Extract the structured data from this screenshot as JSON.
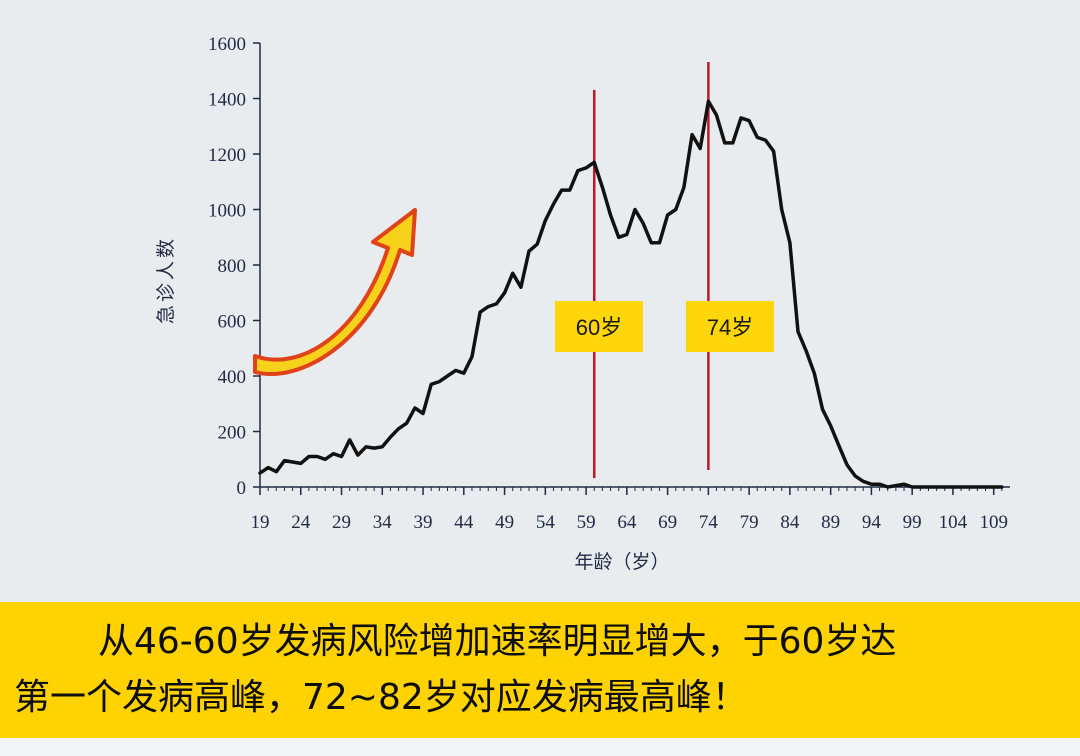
{
  "chart_data": {
    "type": "line",
    "title": "",
    "xlabel": "年龄（岁）",
    "ylabel": "急诊人数",
    "xlim": [
      19,
      111
    ],
    "ylim": [
      0,
      1600
    ],
    "yticks": [
      0,
      200,
      400,
      600,
      800,
      1000,
      1200,
      1400,
      1600
    ],
    "xticks": [
      19,
      24,
      29,
      34,
      39,
      44,
      49,
      54,
      59,
      64,
      69,
      74,
      79,
      84,
      89,
      94,
      99,
      104,
      109
    ],
    "grid": false,
    "series_color": "#111111",
    "x": [
      19,
      20,
      21,
      22,
      23,
      24,
      25,
      26,
      27,
      28,
      29,
      30,
      31,
      32,
      33,
      34,
      35,
      36,
      37,
      38,
      39,
      40,
      41,
      42,
      43,
      44,
      45,
      46,
      47,
      48,
      49,
      50,
      51,
      52,
      53,
      54,
      55,
      56,
      57,
      58,
      59,
      60,
      61,
      62,
      63,
      64,
      65,
      66,
      67,
      68,
      69,
      70,
      71,
      72,
      73,
      74,
      75,
      76,
      77,
      78,
      79,
      80,
      81,
      82,
      83,
      84,
      85,
      86,
      87,
      88,
      89,
      90,
      91,
      92,
      93,
      94,
      95,
      96,
      97,
      98,
      99,
      100,
      101,
      102,
      103,
      104,
      105,
      106,
      107,
      108,
      109,
      110
    ],
    "y": [
      50,
      70,
      55,
      95,
      90,
      85,
      110,
      110,
      100,
      120,
      110,
      170,
      115,
      145,
      140,
      145,
      180,
      210,
      230,
      285,
      265,
      370,
      380,
      400,
      420,
      410,
      470,
      630,
      650,
      660,
      700,
      770,
      720,
      850,
      875,
      960,
      1020,
      1070,
      1070,
      1140,
      1150,
      1170,
      1080,
      980,
      900,
      910,
      1000,
      950,
      880,
      880,
      980,
      1000,
      1080,
      1270,
      1220,
      1390,
      1340,
      1240,
      1240,
      1330,
      1320,
      1260,
      1250,
      1210,
      1000,
      880,
      560,
      490,
      410,
      280,
      220,
      150,
      80,
      40,
      20,
      10,
      10,
      0,
      5,
      10,
      0,
      0,
      0,
      0,
      0,
      0,
      0,
      0,
      0,
      0,
      0,
      0
    ],
    "markers": [
      {
        "x": 60,
        "label": "60岁",
        "color": "#c0182a"
      },
      {
        "x": 74,
        "label": "74岁",
        "color": "#c0182a"
      }
    ],
    "annotation_arrow": {
      "type": "curved-arrow",
      "direction": "up-right",
      "fill": "#f7d21a",
      "outline": "#e0431a"
    }
  },
  "caption": {
    "line1": "从46-60岁发病风险增加速率明显增大，于60岁达",
    "line2": "第一个发病高峰，72~82岁对应发病最高峰！",
    "background": "#ffd200"
  }
}
